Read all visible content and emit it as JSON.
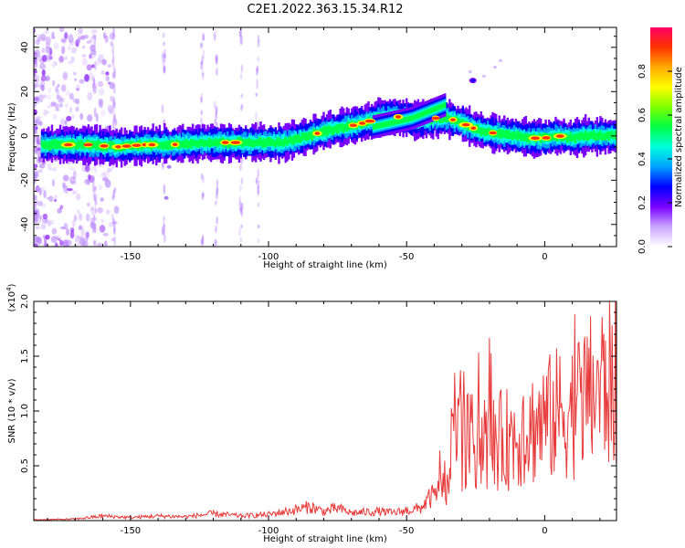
{
  "title": "C2E1.2022.363.15.34.R12",
  "chart_data": [
    {
      "type": "heatmap",
      "xlabel": "Height of straight line (km)",
      "ylabel": "Frequency (Hz)",
      "xlim": [
        -185,
        26
      ],
      "ylim": [
        -50,
        49
      ],
      "xticks": [
        -150,
        -100,
        -50,
        0
      ],
      "yticks": [
        -40,
        -20,
        0,
        20,
        40
      ],
      "colorbar": {
        "label": "Normalized spectral amplitude",
        "range": [
          0,
          1
        ],
        "ticks": [
          "0.0",
          "0.2",
          "0.4",
          "0.6",
          "0.8"
        ],
        "colors": [
          "#ffffff",
          "#c9a5ff",
          "#7a00ff",
          "#0000ff",
          "#00a0ff",
          "#00ffdc",
          "#00ff46",
          "#7fff00",
          "#ffff00",
          "#ffaa00",
          "#ff3300",
          "#ff0066"
        ]
      },
      "ridge": {
        "x": [
          -183,
          -175,
          -165,
          -155,
          -145,
          -135,
          -125,
          -115,
          -105,
          -95,
          -88,
          -80,
          -72,
          -65,
          -60,
          -55,
          -50,
          -45,
          -40,
          -35,
          -30,
          -27,
          -22,
          -17,
          -12,
          -5,
          0,
          5,
          10,
          15,
          20,
          25
        ],
        "y": [
          -4,
          -4,
          -4,
          -5,
          -4,
          -4,
          -3,
          -3,
          -3,
          -3,
          -1,
          2,
          4,
          6,
          8,
          9,
          8,
          7,
          8,
          8,
          6,
          4,
          2,
          1,
          0,
          -1,
          -1,
          0,
          -1,
          0,
          0,
          0
        ]
      },
      "branch": {
        "x": [
          -62,
          -55,
          -48,
          -42,
          -36,
          -30,
          -26
        ],
        "y": [
          4,
          6,
          8,
          11,
          14,
          17,
          20
        ]
      }
    },
    {
      "type": "line",
      "xlabel": "Height of straight line (km)",
      "ylabel": "SNR (10 * v/v)",
      "y_multiplier": "(x10^4)",
      "xlim": [
        -185,
        26
      ],
      "ylim": [
        0,
        2.0
      ],
      "xticks": [
        -150,
        -100,
        -50,
        0
      ],
      "yticks": [
        "0.5",
        "1.0",
        "1.5",
        "2.0"
      ],
      "series": [
        {
          "color": "#e83a3a",
          "envelope_x": [
            -185,
            -170,
            -160,
            -150,
            -140,
            -130,
            -120,
            -110,
            -100,
            -90,
            -85,
            -80,
            -75,
            -70,
            -60,
            -55,
            -50,
            -45,
            -42,
            -38,
            -35,
            -33,
            -30,
            -25,
            -20,
            -15,
            -10,
            -5,
            0,
            5,
            10,
            15,
            20,
            26
          ],
          "envelope_y": [
            0.01,
            0.02,
            0.06,
            0.04,
            0.06,
            0.05,
            0.09,
            0.06,
            0.08,
            0.14,
            0.18,
            0.12,
            0.16,
            0.1,
            0.12,
            0.1,
            0.13,
            0.16,
            0.28,
            0.38,
            0.5,
            0.95,
            1.05,
            1.0,
            1.0,
            1.05,
            1.1,
            1.2,
            1.3,
            1.4,
            1.45,
            1.6,
            1.75,
            1.78
          ]
        }
      ]
    }
  ]
}
